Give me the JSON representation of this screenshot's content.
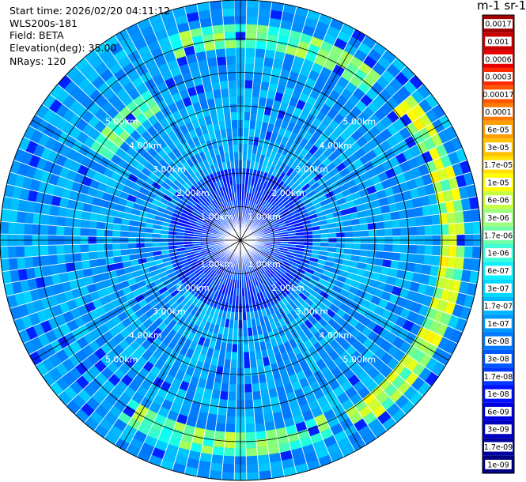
{
  "header": {
    "start_time": "Start time: 2026/02/20 04:11:12",
    "instrument": "WLS200s-181",
    "field": "Field: BETA",
    "elevation": "Elevation(deg): 35.00",
    "nrays": "NRays: 120"
  },
  "colorbar": {
    "title": "m-1 sr-1",
    "labels": [
      "0.0017",
      "0.001",
      "0.0006",
      "0.0003",
      "0.00017",
      "0.0001",
      "6e-05",
      "3e-05",
      "1.7e-05",
      "1e-05",
      "6e-06",
      "3e-06",
      "1.7e-06",
      "1e-06",
      "6e-07",
      "3e-07",
      "1.7e-07",
      "1e-07",
      "6e-08",
      "3e-08",
      "1.7e-08",
      "1e-08",
      "6e-09",
      "3e-09",
      "1.7e-09",
      "1e-09"
    ],
    "colors": [
      "#a00000",
      "#c80000",
      "#e60000",
      "#ff2a00",
      "#ff5500",
      "#ff7a00",
      "#ff9e00",
      "#ffc000",
      "#ffe000",
      "#ffff00",
      "#c8ff40",
      "#9dff80",
      "#70ffa8",
      "#40ffd8",
      "#10f0ff",
      "#00d8ff",
      "#00b8ff",
      "#0098ff",
      "#0078ff",
      "#0058ff",
      "#0038ff",
      "#0010ff",
      "#0000e0",
      "#0000c0",
      "#0000a0",
      "#000080"
    ]
  },
  "chart_data": {
    "type": "heatmap",
    "projection": "polar PPI",
    "nrays": 120,
    "range_rings_km": [
      1,
      2,
      3,
      4,
      5
    ],
    "ring_labels": [
      "1.00km",
      "2.00km",
      "3.00km",
      "4.00km",
      "5.00km"
    ],
    "colormap": "jet",
    "value_field": "BETA",
    "value_range": [
      1e-09,
      0.0017
    ]
  }
}
